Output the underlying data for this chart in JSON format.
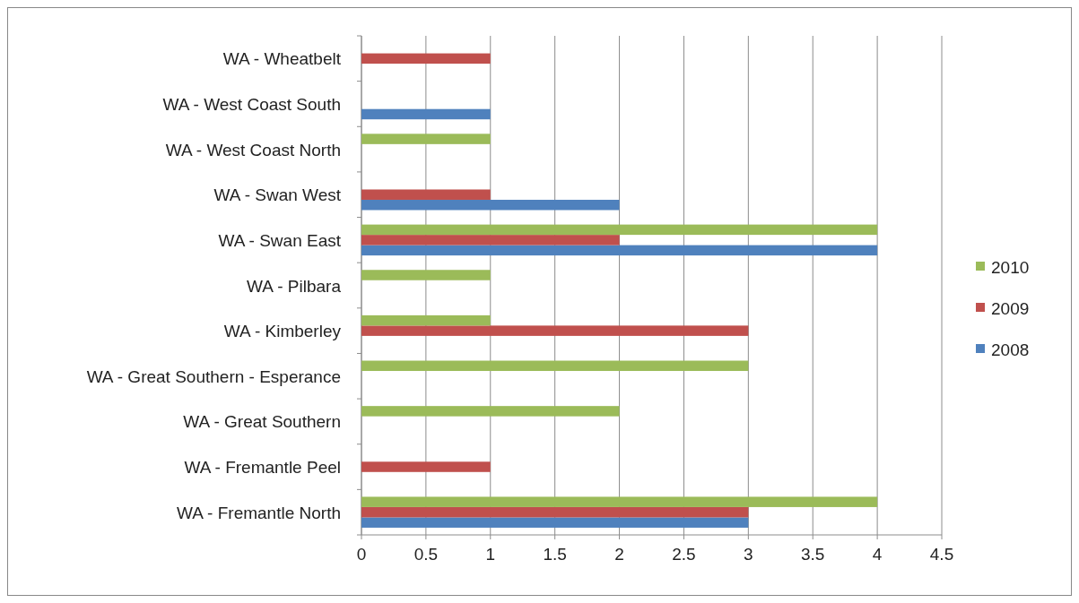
{
  "chart_data": {
    "type": "bar",
    "orientation": "horizontal",
    "categories": [
      "WA - Wheatbelt",
      "WA - West Coast South",
      "WA - West Coast North",
      "WA - Swan West",
      "WA - Swan East",
      "WA - Pilbara",
      "WA - Kimberley",
      "WA - Great Southern - Esperance",
      "WA - Great Southern",
      "WA - Fremantle Peel",
      "WA - Fremantle North"
    ],
    "series": [
      {
        "name": "2008",
        "color": "#4f81bd",
        "values": [
          null,
          1,
          null,
          2,
          4,
          null,
          null,
          null,
          null,
          null,
          3
        ]
      },
      {
        "name": "2009",
        "color": "#c0504d",
        "values": [
          1,
          null,
          null,
          1,
          2,
          null,
          3,
          null,
          null,
          1,
          3
        ]
      },
      {
        "name": "2010",
        "color": "#9bbb59",
        "values": [
          null,
          null,
          1,
          null,
          4,
          1,
          1,
          3,
          2,
          null,
          4
        ]
      }
    ],
    "xlim": [
      0,
      4.5
    ],
    "xticks": [
      0,
      0.5,
      1,
      1.5,
      2,
      2.5,
      3,
      3.5,
      4,
      4.5
    ],
    "grid": "x",
    "legend": "right"
  }
}
